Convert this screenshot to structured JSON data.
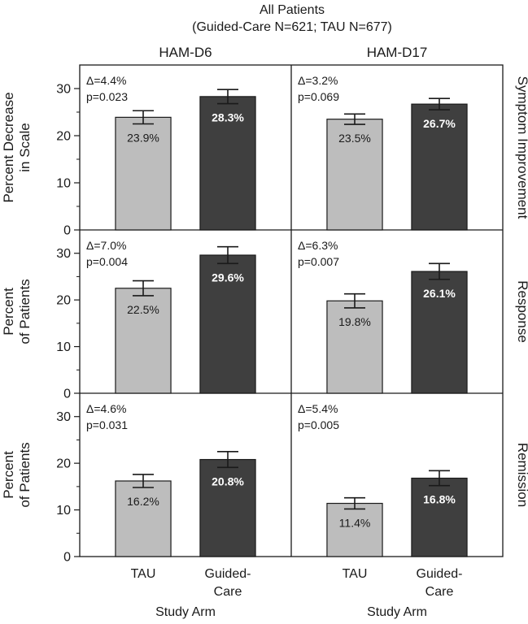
{
  "title": "All Patients",
  "subtitle": "(Guided-Care N=621; TAU N=677)",
  "columns": [
    "HAM-D6",
    "HAM-D17"
  ],
  "x_axis_title": "Study Arm",
  "categories": [
    "TAU",
    "Guided-Care"
  ],
  "category_lines": [
    [
      "TAU"
    ],
    [
      "Guided-",
      "Care"
    ]
  ],
  "colors": {
    "TAU": "#bdbdbd",
    "Guided-Care": "#3f3f3f",
    "axis": "#1a1a1a"
  },
  "chart_data": [
    {
      "type": "bar",
      "row": "Symptom Improvement",
      "column": "HAM-D6",
      "ylabel": "Percent Decrease in Scale",
      "ylabel_lines": [
        "Percent Decrease",
        "in Scale"
      ],
      "ylim": [
        0,
        35
      ],
      "yticks": [
        0,
        10,
        20,
        30
      ],
      "categories": [
        "TAU",
        "Guided-Care"
      ],
      "values": [
        23.9,
        28.3
      ],
      "value_labels": [
        "23.9%",
        "28.3%"
      ],
      "error": [
        [
          22.5,
          25.3
        ],
        [
          26.8,
          29.8
        ]
      ],
      "annotation": [
        "Δ=4.4%",
        "p=0.023"
      ]
    },
    {
      "type": "bar",
      "row": "Symptom Improvement",
      "column": "HAM-D17",
      "ylim": [
        0,
        35
      ],
      "yticks": [
        0,
        10,
        20,
        30
      ],
      "categories": [
        "TAU",
        "Guided-Care"
      ],
      "values": [
        23.5,
        26.7
      ],
      "value_labels": [
        "23.5%",
        "26.7%"
      ],
      "error": [
        [
          22.4,
          24.6
        ],
        [
          25.5,
          27.9
        ]
      ],
      "annotation": [
        "Δ=3.2%",
        "p=0.069"
      ]
    },
    {
      "type": "bar",
      "row": "Response",
      "column": "HAM-D6",
      "ylabel": "Percent of Patients",
      "ylabel_lines": [
        "Percent",
        "of Patients"
      ],
      "ylim": [
        0,
        35
      ],
      "yticks": [
        0,
        10,
        20,
        30
      ],
      "categories": [
        "TAU",
        "Guided-Care"
      ],
      "values": [
        22.5,
        29.6
      ],
      "value_labels": [
        "22.5%",
        "29.6%"
      ],
      "error": [
        [
          20.9,
          24.1
        ],
        [
          27.8,
          31.4
        ]
      ],
      "annotation": [
        "Δ=7.0%",
        "p=0.004"
      ]
    },
    {
      "type": "bar",
      "row": "Response",
      "column": "HAM-D17",
      "ylim": [
        0,
        35
      ],
      "yticks": [
        0,
        10,
        20,
        30
      ],
      "categories": [
        "TAU",
        "Guided-Care"
      ],
      "values": [
        19.8,
        26.1
      ],
      "value_labels": [
        "19.8%",
        "26.1%"
      ],
      "error": [
        [
          18.3,
          21.3
        ],
        [
          24.4,
          27.8
        ]
      ],
      "annotation": [
        "Δ=6.3%",
        "p=0.007"
      ]
    },
    {
      "type": "bar",
      "row": "Remission",
      "column": "HAM-D6",
      "ylabel": "Percent of Patients",
      "ylabel_lines": [
        "Percent",
        "of Patients"
      ],
      "ylim": [
        0,
        35
      ],
      "yticks": [
        0,
        10,
        20,
        30
      ],
      "categories": [
        "TAU",
        "Guided-Care"
      ],
      "values": [
        16.2,
        20.8
      ],
      "value_labels": [
        "16.2%",
        "20.8%"
      ],
      "error": [
        [
          14.8,
          17.6
        ],
        [
          19.1,
          22.5
        ]
      ],
      "annotation": [
        "Δ=4.6%",
        "p=0.031"
      ]
    },
    {
      "type": "bar",
      "row": "Remission",
      "column": "HAM-D17",
      "ylim": [
        0,
        35
      ],
      "yticks": [
        0,
        10,
        20,
        30
      ],
      "categories": [
        "TAU",
        "Guided-Care"
      ],
      "values": [
        11.4,
        16.8
      ],
      "value_labels": [
        "11.4%",
        "16.8%"
      ],
      "error": [
        [
          10.2,
          12.6
        ],
        [
          15.2,
          18.4
        ]
      ],
      "annotation": [
        "Δ=5.4%",
        "p=0.005"
      ]
    }
  ]
}
